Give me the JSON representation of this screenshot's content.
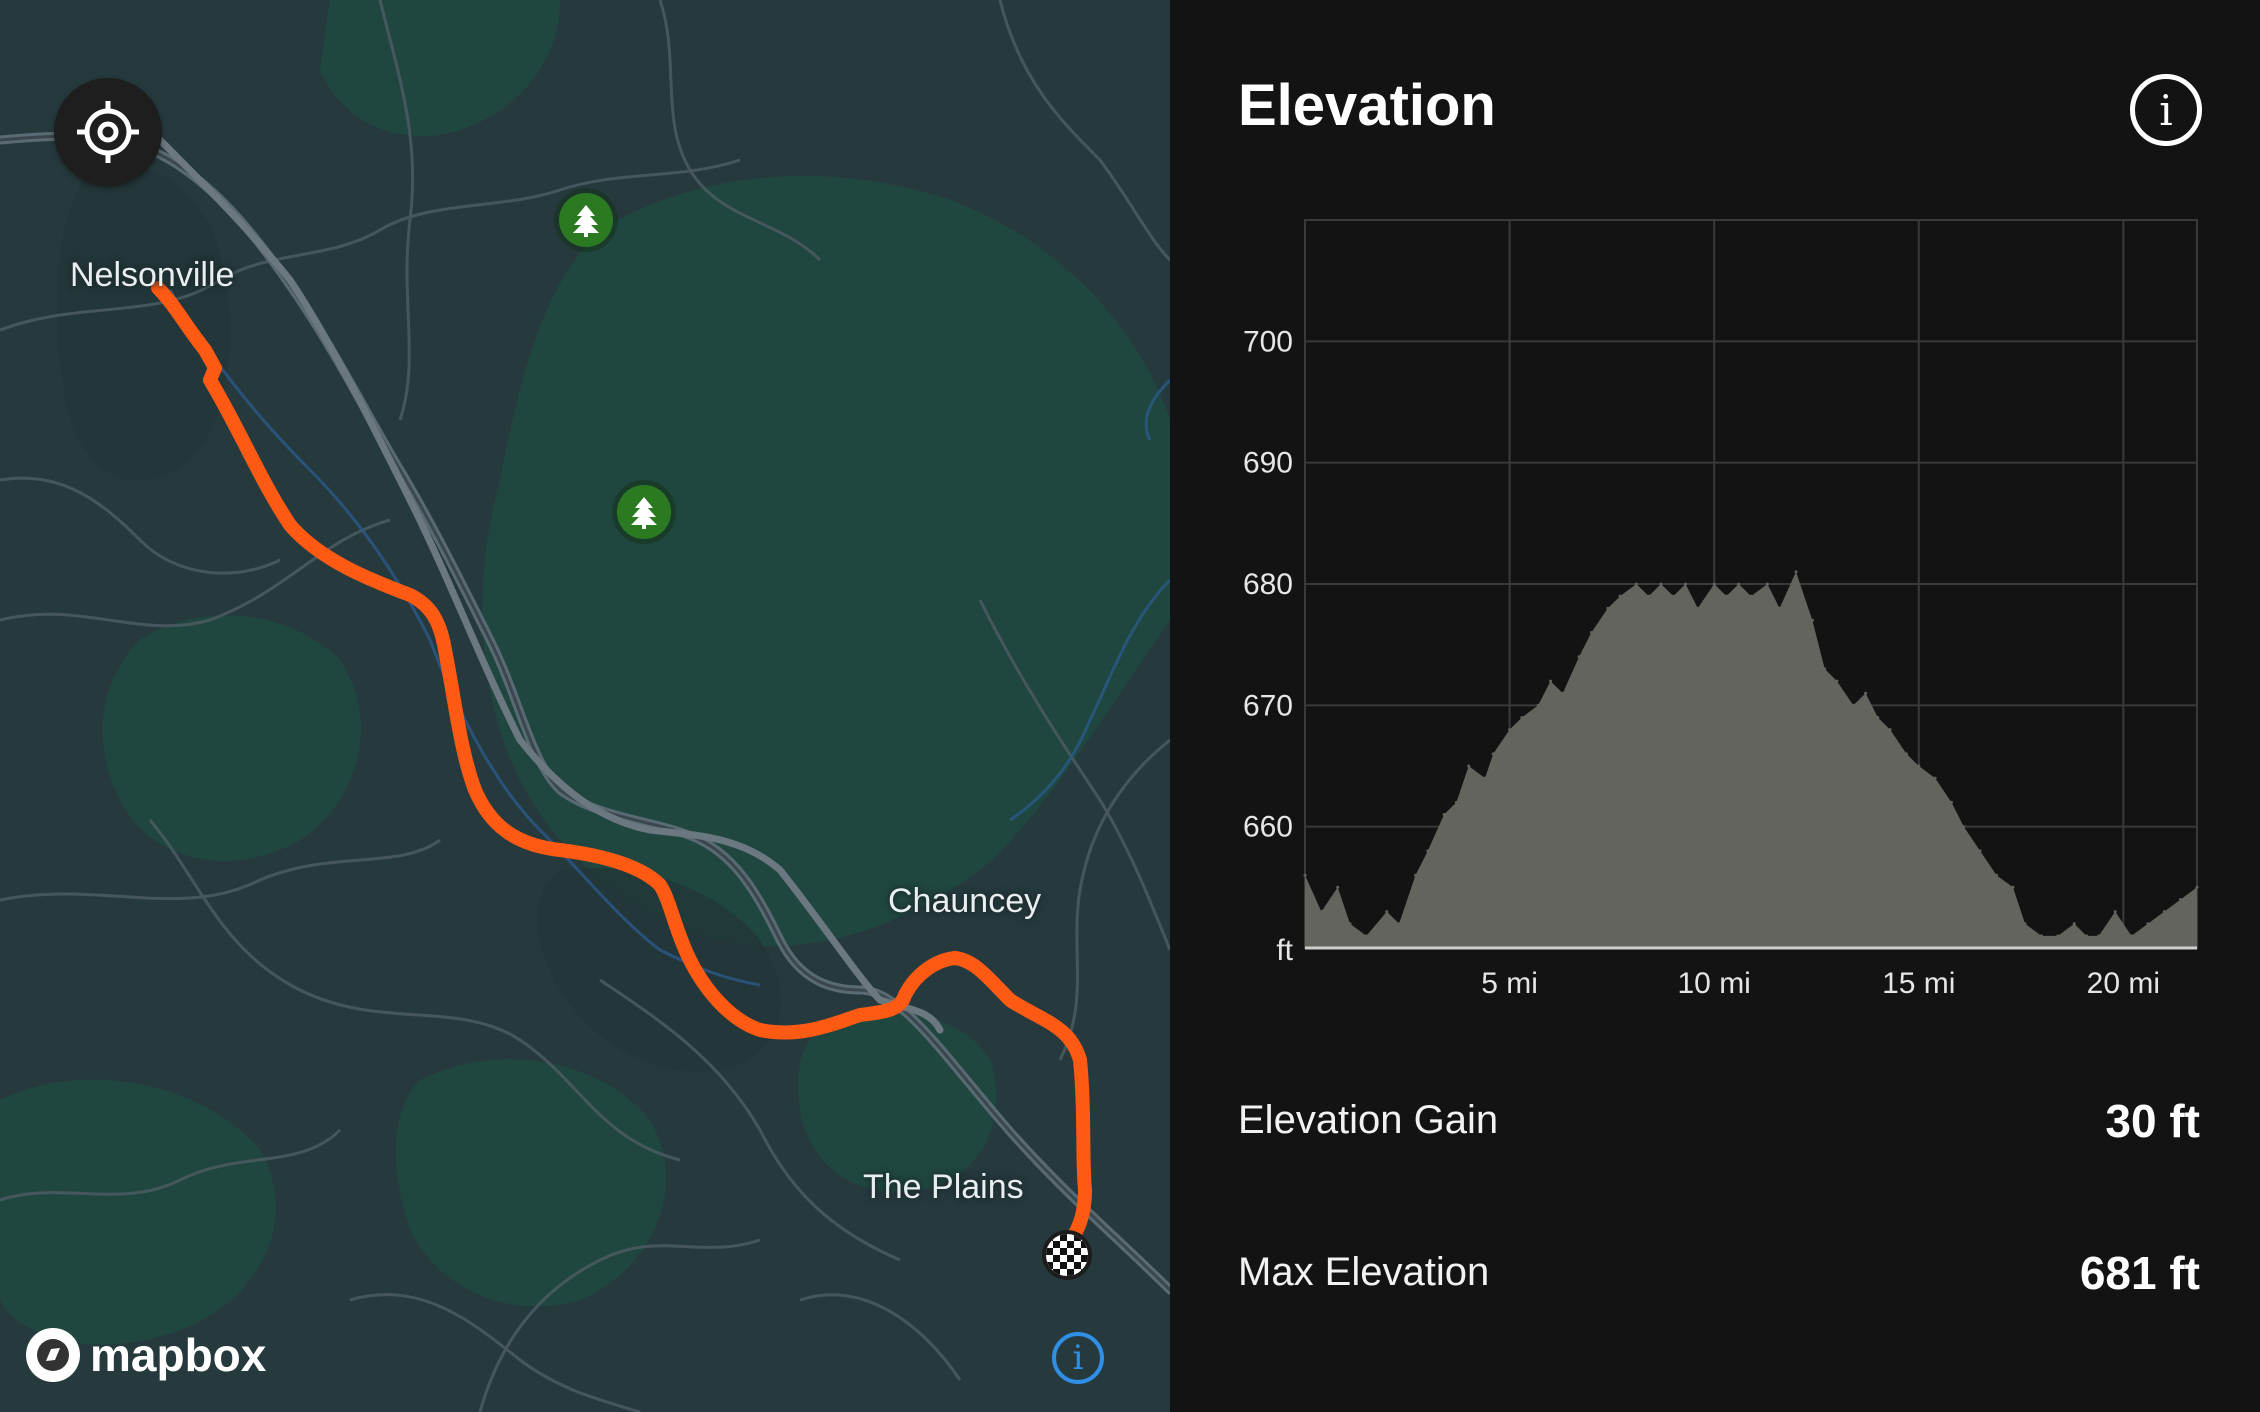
{
  "map": {
    "places": {
      "nelsonville": "Nelsonville",
      "chauncey": "Chauncey",
      "the_plains": "The Plains"
    },
    "route_color": "#ff5a14",
    "attribution": "mapbox"
  },
  "panel": {
    "title": "Elevation",
    "stats": [
      {
        "label": "Elevation Gain",
        "value": "30 ft"
      },
      {
        "label": "Max Elevation",
        "value": "681 ft"
      }
    ]
  },
  "chart_data": {
    "type": "area",
    "title": "",
    "xlabel": "",
    "ylabel": "ft",
    "x_unit": "mi",
    "xlim": [
      0,
      21.8
    ],
    "ylim": [
      650,
      710
    ],
    "x_ticks": [
      5,
      10,
      15,
      20
    ],
    "x_tick_labels": [
      "5 mi",
      "10 mi",
      "15 mi",
      "20 mi"
    ],
    "y_ticks": [
      660,
      670,
      680,
      690,
      700
    ],
    "y_tick_labels": [
      "660",
      "670",
      "680",
      "690",
      "700"
    ],
    "grid": true,
    "fill_color": "#64645f",
    "x": [
      0,
      0.4,
      0.8,
      1.1,
      1.5,
      2.0,
      2.3,
      2.7,
      3.0,
      3.4,
      3.7,
      4.0,
      4.4,
      4.6,
      5.0,
      5.3,
      5.7,
      6.0,
      6.3,
      6.7,
      7.0,
      7.4,
      7.7,
      8.1,
      8.4,
      8.7,
      9.0,
      9.3,
      9.6,
      10.0,
      10.3,
      10.6,
      10.9,
      11.3,
      11.6,
      12.0,
      12.4,
      12.7,
      13.0,
      13.4,
      13.7,
      14.0,
      14.3,
      14.7,
      15.0,
      15.4,
      15.8,
      16.1,
      16.5,
      16.9,
      17.3,
      17.6,
      18.0,
      18.4,
      18.8,
      19.1,
      19.4,
      19.8,
      20.2,
      20.6,
      21.0,
      21.4,
      21.8
    ],
    "y": [
      656,
      653,
      655,
      652,
      651,
      653,
      652,
      656,
      658,
      661,
      662,
      665,
      664,
      666,
      668,
      669,
      670,
      672,
      671,
      674,
      676,
      678,
      679,
      680,
      679,
      680,
      679,
      680,
      678,
      680,
      679,
      680,
      679,
      680,
      678,
      681,
      677,
      673,
      672,
      670,
      671,
      669,
      668,
      666,
      665,
      664,
      662,
      660,
      658,
      656,
      655,
      652,
      651,
      651,
      652,
      651,
      651,
      653,
      651,
      652,
      653,
      654,
      655
    ]
  }
}
